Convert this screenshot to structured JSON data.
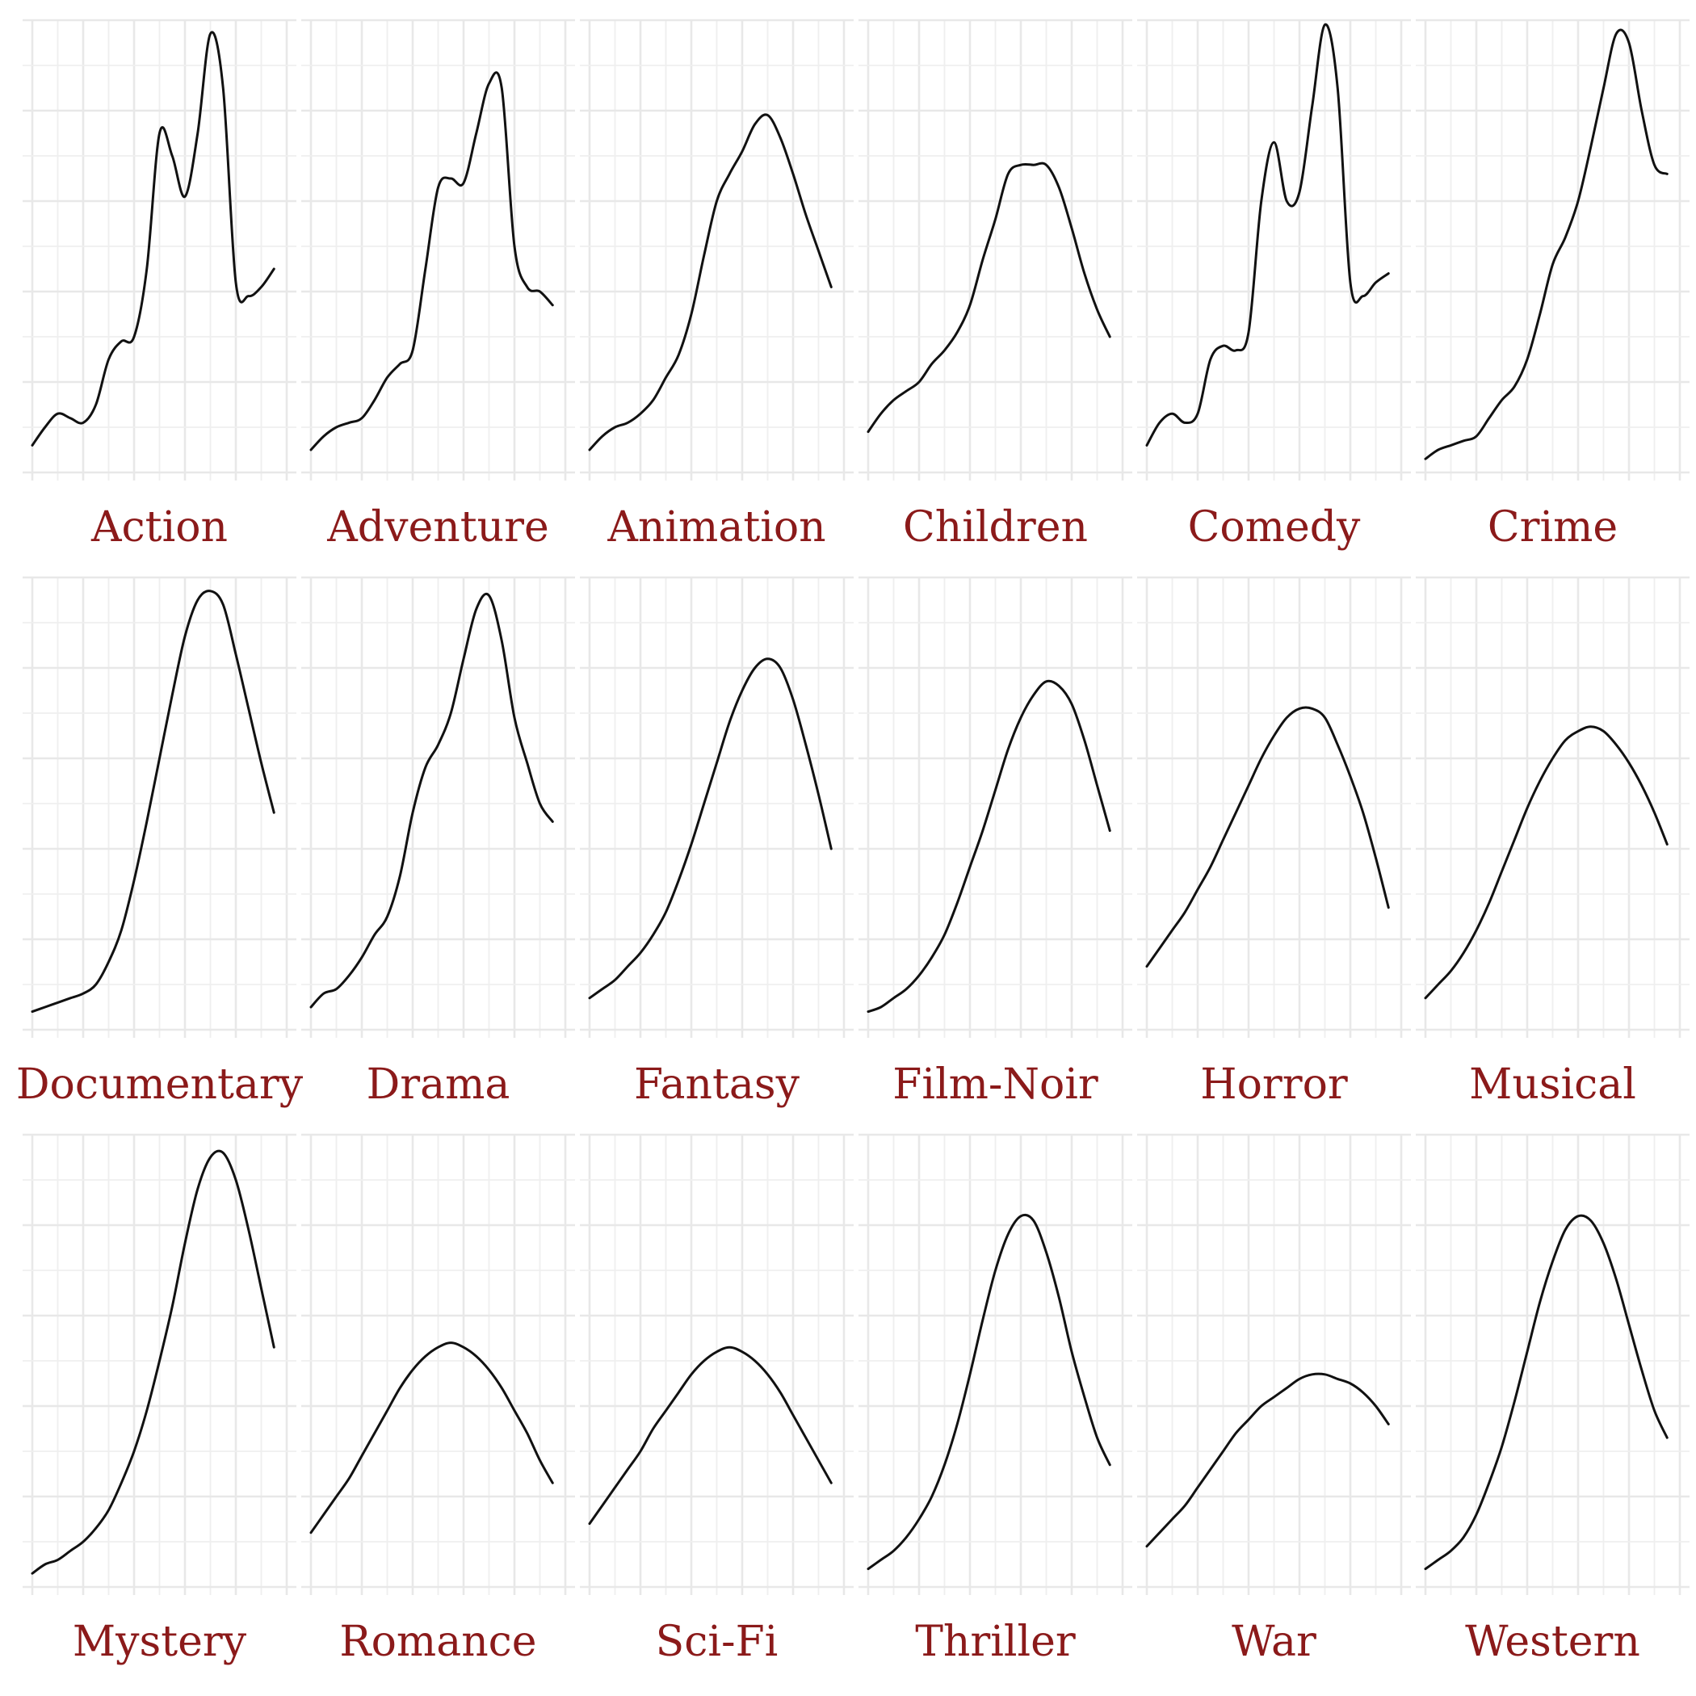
{
  "chart_data": {
    "type": "line",
    "layout": "small multiples, 3 rows x 6 columns",
    "x_range": [
      0,
      10
    ],
    "y_range": [
      0,
      1
    ],
    "grid": true,
    "axis_labels_shown": false,
    "label_color": "#8b1a1a",
    "line_color": "#111111",
    "facets": [
      {
        "label": "Action",
        "x": [
          0,
          0.5,
          1,
          1.5,
          2,
          2.5,
          3,
          3.5,
          4,
          4.5,
          5,
          5.5,
          6,
          6.5,
          7,
          7.5,
          8,
          8.5,
          9,
          9.5
        ],
        "y": [
          0.06,
          0.1,
          0.13,
          0.12,
          0.11,
          0.15,
          0.25,
          0.29,
          0.3,
          0.45,
          0.75,
          0.7,
          0.61,
          0.75,
          0.97,
          0.85,
          0.42,
          0.39,
          0.41,
          0.45
        ]
      },
      {
        "label": "Adventure",
        "x": [
          0,
          0.5,
          1,
          1.5,
          2,
          2.5,
          3,
          3.5,
          4,
          4.5,
          5,
          5.5,
          6,
          6.5,
          7,
          7.5,
          8,
          8.5,
          9,
          9.5
        ],
        "y": [
          0.05,
          0.08,
          0.1,
          0.11,
          0.12,
          0.16,
          0.21,
          0.24,
          0.27,
          0.45,
          0.63,
          0.65,
          0.64,
          0.75,
          0.86,
          0.85,
          0.5,
          0.41,
          0.4,
          0.37
        ]
      },
      {
        "label": "Animation",
        "x": [
          0,
          0.5,
          1,
          1.5,
          2,
          2.5,
          3,
          3.5,
          4,
          4.5,
          5,
          5.5,
          6,
          6.5,
          7,
          7.5,
          8,
          8.5,
          9,
          9.5
        ],
        "y": [
          0.05,
          0.08,
          0.1,
          0.11,
          0.13,
          0.16,
          0.21,
          0.26,
          0.35,
          0.48,
          0.6,
          0.66,
          0.71,
          0.77,
          0.79,
          0.74,
          0.66,
          0.57,
          0.49,
          0.41
        ]
      },
      {
        "label": "Children",
        "x": [
          0,
          0.5,
          1,
          1.5,
          2,
          2.5,
          3,
          3.5,
          4,
          4.5,
          5,
          5.5,
          6,
          6.5,
          7,
          7.5,
          8,
          8.5,
          9,
          9.5
        ],
        "y": [
          0.09,
          0.13,
          0.16,
          0.18,
          0.2,
          0.24,
          0.27,
          0.31,
          0.37,
          0.47,
          0.56,
          0.66,
          0.68,
          0.68,
          0.68,
          0.63,
          0.54,
          0.44,
          0.36,
          0.3
        ]
      },
      {
        "label": "Comedy",
        "x": [
          0,
          0.5,
          1,
          1.5,
          2,
          2.5,
          3,
          3.5,
          4,
          4.5,
          5,
          5.5,
          6,
          6.5,
          7,
          7.5,
          8,
          8.5,
          9,
          9.5
        ],
        "y": [
          0.06,
          0.11,
          0.13,
          0.11,
          0.13,
          0.25,
          0.28,
          0.27,
          0.31,
          0.6,
          0.73,
          0.6,
          0.62,
          0.81,
          0.99,
          0.85,
          0.42,
          0.39,
          0.42,
          0.44
        ]
      },
      {
        "label": "Crime",
        "x": [
          0,
          0.5,
          1,
          1.5,
          2,
          2.5,
          3,
          3.5,
          4,
          4.5,
          5,
          5.5,
          6,
          6.5,
          7,
          7.5,
          8,
          8.5,
          9,
          9.5
        ],
        "y": [
          0.03,
          0.05,
          0.06,
          0.07,
          0.08,
          0.12,
          0.16,
          0.19,
          0.25,
          0.35,
          0.46,
          0.52,
          0.6,
          0.72,
          0.85,
          0.97,
          0.95,
          0.8,
          0.68,
          0.66
        ]
      },
      {
        "label": "Documentary",
        "x": [
          0,
          0.5,
          1,
          1.5,
          2,
          2.5,
          3,
          3.5,
          4,
          4.5,
          5,
          5.5,
          6,
          6.5,
          7,
          7.5,
          8,
          8.5,
          9,
          9.5
        ],
        "y": [
          0.04,
          0.05,
          0.06,
          0.07,
          0.08,
          0.1,
          0.15,
          0.22,
          0.33,
          0.46,
          0.6,
          0.74,
          0.87,
          0.95,
          0.97,
          0.94,
          0.83,
          0.71,
          0.59,
          0.48
        ]
      },
      {
        "label": "Drama",
        "x": [
          0,
          0.5,
          1,
          1.5,
          2,
          2.5,
          3,
          3.5,
          4,
          4.5,
          5,
          5.5,
          6,
          6.5,
          7,
          7.5,
          8,
          8.5,
          9,
          9.5
        ],
        "y": [
          0.05,
          0.08,
          0.09,
          0.12,
          0.16,
          0.21,
          0.25,
          0.34,
          0.48,
          0.58,
          0.63,
          0.7,
          0.82,
          0.93,
          0.96,
          0.86,
          0.69,
          0.59,
          0.5,
          0.46
        ]
      },
      {
        "label": "Fantasy",
        "x": [
          0,
          0.5,
          1,
          1.5,
          2,
          2.5,
          3,
          3.5,
          4,
          4.5,
          5,
          5.5,
          6,
          6.5,
          7,
          7.5,
          8,
          8.5,
          9,
          9.5
        ],
        "y": [
          0.07,
          0.09,
          0.11,
          0.14,
          0.17,
          0.21,
          0.26,
          0.33,
          0.41,
          0.5,
          0.59,
          0.68,
          0.75,
          0.8,
          0.82,
          0.8,
          0.73,
          0.63,
          0.52,
          0.4
        ]
      },
      {
        "label": "Film-Noir",
        "x": [
          0,
          0.5,
          1,
          1.5,
          2,
          2.5,
          3,
          3.5,
          4,
          4.5,
          5,
          5.5,
          6,
          6.5,
          7,
          7.5,
          8,
          8.5,
          9,
          9.5
        ],
        "y": [
          0.04,
          0.05,
          0.07,
          0.09,
          0.12,
          0.16,
          0.21,
          0.28,
          0.36,
          0.44,
          0.53,
          0.62,
          0.69,
          0.74,
          0.77,
          0.76,
          0.72,
          0.64,
          0.54,
          0.44
        ]
      },
      {
        "label": "Horror",
        "x": [
          0,
          0.5,
          1,
          1.5,
          2,
          2.5,
          3,
          3.5,
          4,
          4.5,
          5,
          5.5,
          6,
          6.5,
          7,
          7.5,
          8,
          8.5,
          9,
          9.5
        ],
        "y": [
          0.14,
          0.18,
          0.22,
          0.26,
          0.31,
          0.36,
          0.42,
          0.48,
          0.54,
          0.6,
          0.65,
          0.69,
          0.71,
          0.71,
          0.69,
          0.63,
          0.56,
          0.48,
          0.38,
          0.27
        ]
      },
      {
        "label": "Musical",
        "x": [
          0,
          0.5,
          1,
          1.5,
          2,
          2.5,
          3,
          3.5,
          4,
          4.5,
          5,
          5.5,
          6,
          6.5,
          7,
          7.5,
          8,
          8.5,
          9,
          9.5
        ],
        "y": [
          0.07,
          0.1,
          0.13,
          0.17,
          0.22,
          0.28,
          0.35,
          0.42,
          0.49,
          0.55,
          0.6,
          0.64,
          0.66,
          0.67,
          0.66,
          0.63,
          0.59,
          0.54,
          0.48,
          0.41
        ]
      },
      {
        "label": "Mystery",
        "x": [
          0,
          0.5,
          1,
          1.5,
          2,
          2.5,
          3,
          3.5,
          4,
          4.5,
          5,
          5.5,
          6,
          6.5,
          7,
          7.5,
          8,
          8.5,
          9,
          9.5
        ],
        "y": [
          0.03,
          0.05,
          0.06,
          0.08,
          0.1,
          0.13,
          0.17,
          0.23,
          0.3,
          0.39,
          0.5,
          0.62,
          0.76,
          0.88,
          0.95,
          0.96,
          0.9,
          0.79,
          0.66,
          0.53
        ]
      },
      {
        "label": "Romance",
        "x": [
          0,
          0.5,
          1,
          1.5,
          2,
          2.5,
          3,
          3.5,
          4,
          4.5,
          5,
          5.5,
          6,
          6.5,
          7,
          7.5,
          8,
          8.5,
          9,
          9.5
        ],
        "y": [
          0.12,
          0.16,
          0.2,
          0.24,
          0.29,
          0.34,
          0.39,
          0.44,
          0.48,
          0.51,
          0.53,
          0.54,
          0.53,
          0.51,
          0.48,
          0.44,
          0.39,
          0.34,
          0.28,
          0.23
        ]
      },
      {
        "label": "Sci-Fi",
        "x": [
          0,
          0.5,
          1,
          1.5,
          2,
          2.5,
          3,
          3.5,
          4,
          4.5,
          5,
          5.5,
          6,
          6.5,
          7,
          7.5,
          8,
          8.5,
          9,
          9.5
        ],
        "y": [
          0.14,
          0.18,
          0.22,
          0.26,
          0.3,
          0.35,
          0.39,
          0.43,
          0.47,
          0.5,
          0.52,
          0.53,
          0.52,
          0.5,
          0.47,
          0.43,
          0.38,
          0.33,
          0.28,
          0.23
        ]
      },
      {
        "label": "Thriller",
        "x": [
          0,
          0.5,
          1,
          1.5,
          2,
          2.5,
          3,
          3.5,
          4,
          4.5,
          5,
          5.5,
          6,
          6.5,
          7,
          7.5,
          8,
          8.5,
          9,
          9.5
        ],
        "y": [
          0.04,
          0.06,
          0.08,
          0.11,
          0.15,
          0.2,
          0.27,
          0.36,
          0.47,
          0.59,
          0.7,
          0.78,
          0.82,
          0.81,
          0.74,
          0.64,
          0.52,
          0.42,
          0.33,
          0.27
        ]
      },
      {
        "label": "War",
        "x": [
          0,
          0.5,
          1,
          1.5,
          2,
          2.5,
          3,
          3.5,
          4,
          4.5,
          5,
          5.5,
          6,
          6.5,
          7,
          7.5,
          8,
          8.5,
          9,
          9.5
        ],
        "y": [
          0.09,
          0.12,
          0.15,
          0.18,
          0.22,
          0.26,
          0.3,
          0.34,
          0.37,
          0.4,
          0.42,
          0.44,
          0.46,
          0.47,
          0.47,
          0.46,
          0.45,
          0.43,
          0.4,
          0.36
        ]
      },
      {
        "label": "Western",
        "x": [
          0,
          0.5,
          1,
          1.5,
          2,
          2.5,
          3,
          3.5,
          4,
          4.5,
          5,
          5.5,
          6,
          6.5,
          7,
          7.5,
          8,
          8.5,
          9,
          9.5
        ],
        "y": [
          0.04,
          0.06,
          0.08,
          0.11,
          0.16,
          0.23,
          0.31,
          0.41,
          0.52,
          0.63,
          0.72,
          0.79,
          0.82,
          0.81,
          0.76,
          0.68,
          0.58,
          0.48,
          0.39,
          0.33
        ]
      }
    ]
  }
}
